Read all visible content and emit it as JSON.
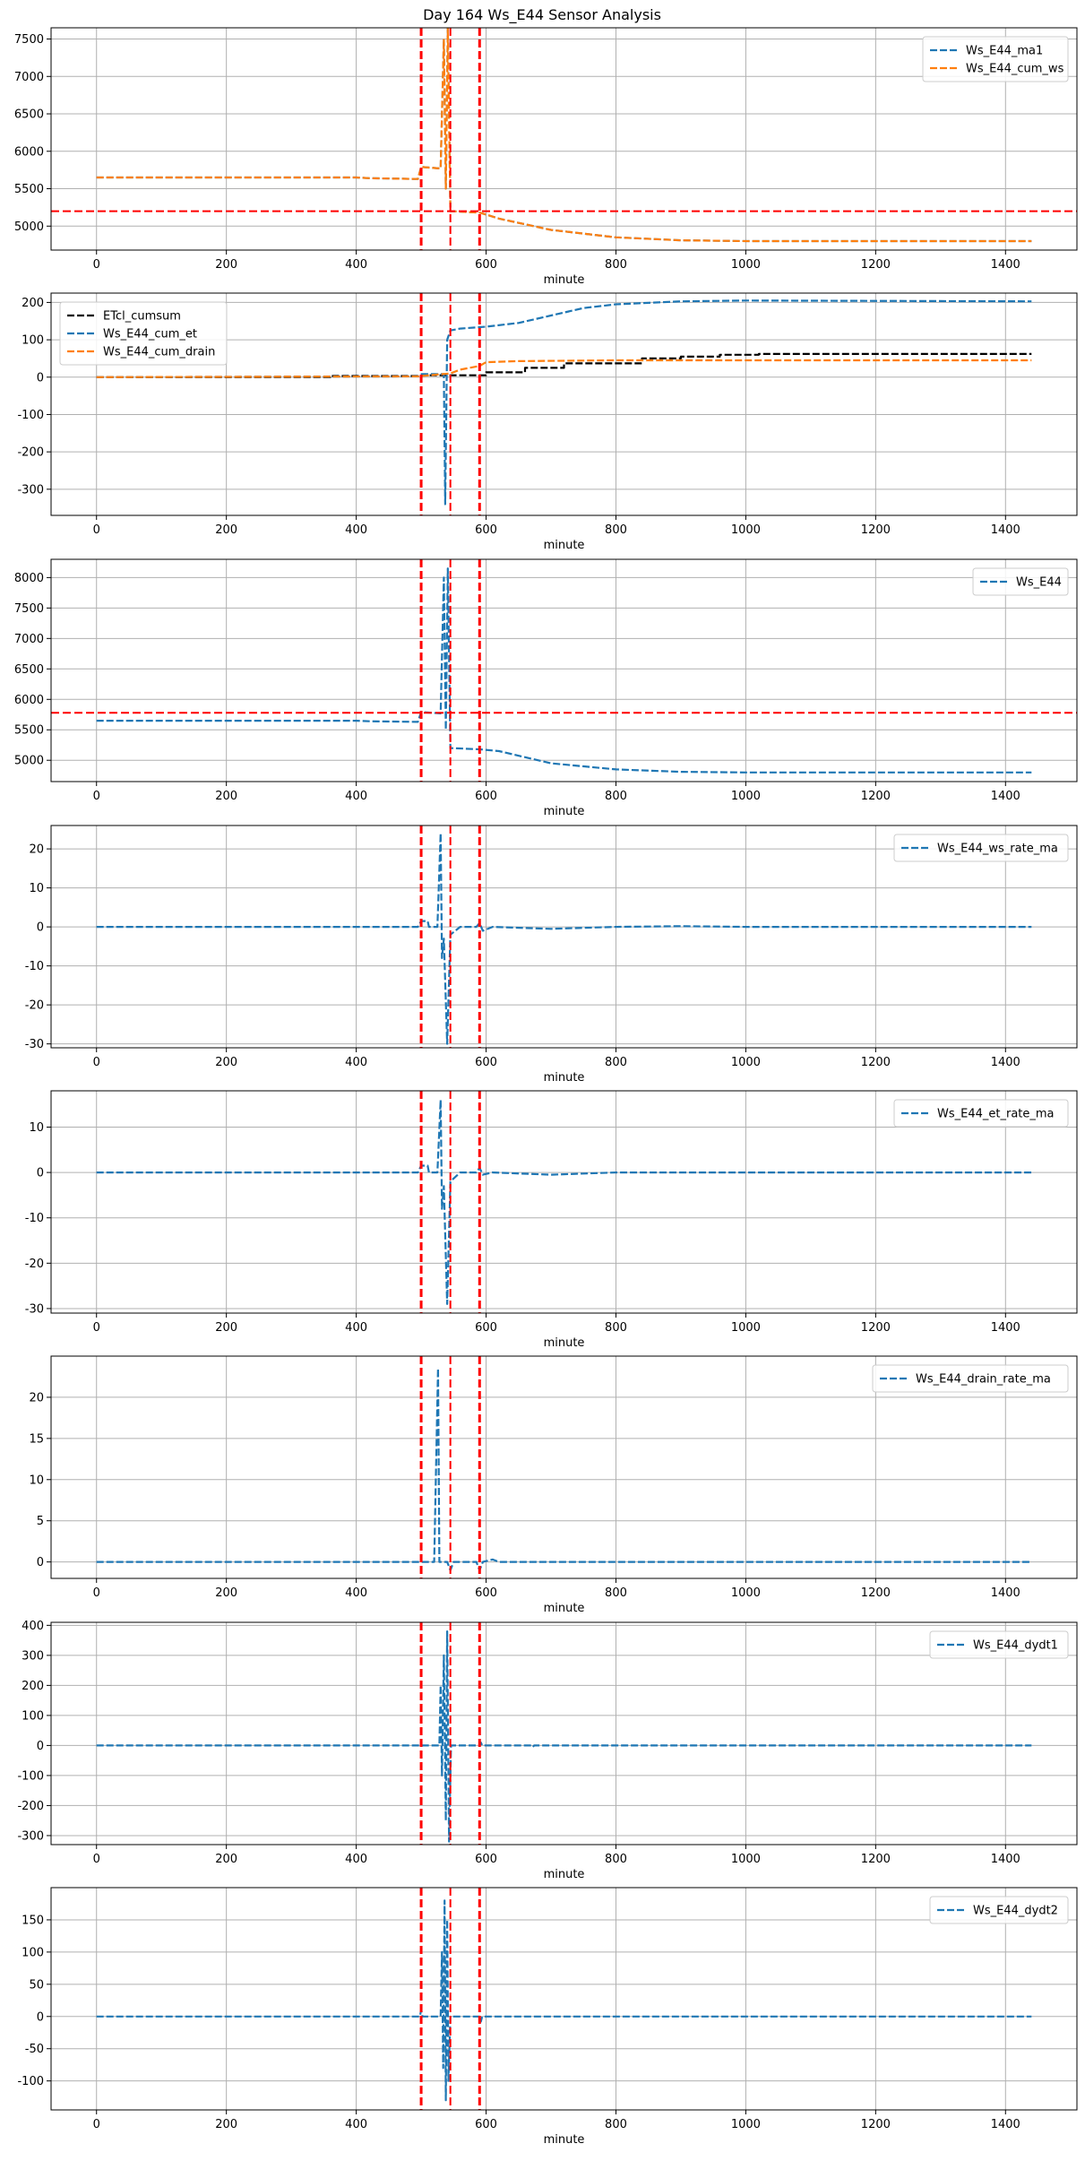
{
  "figure": {
    "title": "Day 164 Ws_E44 Sensor Analysis"
  },
  "colors": {
    "blue": "#1f77b4",
    "orange": "#ff7f0e",
    "black": "#000000",
    "red": "#ff0000",
    "grid": "#b0b0b0"
  },
  "chart_data": [
    {
      "type": "line",
      "xlabel": "minute",
      "legend_loc": "upper right",
      "xlim": [
        -70,
        1510
      ],
      "ylim": [
        4680,
        7650
      ],
      "xticks": [
        0,
        200,
        400,
        600,
        800,
        1000,
        1200,
        1400
      ],
      "yticks": [
        5000,
        5500,
        6000,
        6500,
        7000,
        7500
      ],
      "vlines": [
        500,
        545,
        590
      ],
      "hlines": [
        5200
      ],
      "series": [
        {
          "name": "Ws_E44_ma1",
          "color": "#1f77b4",
          "style": "dashed",
          "points": [
            [
              0,
              5650
            ],
            [
              400,
              5650
            ],
            [
              420,
              5640
            ],
            [
              495,
              5630
            ],
            [
              500,
              5790
            ],
            [
              530,
              5770
            ],
            [
              535,
              7500
            ],
            [
              538,
              5500
            ],
            [
              541,
              7650
            ],
            [
              545,
              5200
            ],
            [
              590,
              5180
            ],
            [
              620,
              5100
            ],
            [
              700,
              4950
            ],
            [
              800,
              4850
            ],
            [
              900,
              4810
            ],
            [
              1000,
              4800
            ],
            [
              1440,
              4800
            ]
          ]
        },
        {
          "name": "Ws_E44_cum_ws",
          "color": "#ff7f0e",
          "style": "dashed",
          "points": [
            [
              0,
              5650
            ],
            [
              400,
              5650
            ],
            [
              420,
              5640
            ],
            [
              495,
              5630
            ],
            [
              500,
              5790
            ],
            [
              530,
              5770
            ],
            [
              535,
              7500
            ],
            [
              538,
              5500
            ],
            [
              541,
              7650
            ],
            [
              545,
              5200
            ],
            [
              590,
              5180
            ],
            [
              620,
              5100
            ],
            [
              700,
              4950
            ],
            [
              800,
              4850
            ],
            [
              900,
              4810
            ],
            [
              1000,
              4800
            ],
            [
              1440,
              4800
            ]
          ]
        }
      ]
    },
    {
      "type": "line",
      "xlabel": "minute",
      "legend_loc": "upper left",
      "xlim": [
        -70,
        1510
      ],
      "ylim": [
        -370,
        225
      ],
      "xticks": [
        0,
        200,
        400,
        600,
        800,
        1000,
        1200,
        1400
      ],
      "yticks": [
        -300,
        -200,
        -100,
        0,
        100,
        200
      ],
      "vlines": [
        500,
        545,
        590
      ],
      "hlines": [],
      "series": [
        {
          "name": "ETcl_cumsum",
          "color": "#000000",
          "style": "dashed",
          "points": [
            [
              0,
              0
            ],
            [
              360,
              0
            ],
            [
              360,
              3
            ],
            [
              500,
              3
            ],
            [
              500,
              5
            ],
            [
              600,
              5
            ],
            [
              600,
              13
            ],
            [
              660,
              13
            ],
            [
              660,
              25
            ],
            [
              720,
              25
            ],
            [
              720,
              37
            ],
            [
              780,
              37
            ],
            [
              780,
              37
            ],
            [
              840,
              37
            ],
            [
              840,
              50
            ],
            [
              900,
              50
            ],
            [
              900,
              55
            ],
            [
              960,
              55
            ],
            [
              960,
              60
            ],
            [
              1020,
              60
            ],
            [
              1020,
              62
            ],
            [
              1440,
              62
            ]
          ]
        },
        {
          "name": "Ws_E44_cum_et",
          "color": "#1f77b4",
          "style": "dashed",
          "points": [
            [
              0,
              0
            ],
            [
              495,
              2
            ],
            [
              500,
              8
            ],
            [
              535,
              8
            ],
            [
              537,
              -340
            ],
            [
              540,
              100
            ],
            [
              545,
              125
            ],
            [
              560,
              130
            ],
            [
              600,
              135
            ],
            [
              650,
              145
            ],
            [
              700,
              165
            ],
            [
              750,
              185
            ],
            [
              800,
              195
            ],
            [
              900,
              203
            ],
            [
              1000,
              205
            ],
            [
              1440,
              203
            ]
          ]
        },
        {
          "name": "Ws_E44_cum_drain",
          "color": "#ff7f0e",
          "style": "dashed",
          "points": [
            [
              0,
              0
            ],
            [
              495,
              2
            ],
            [
              500,
              3
            ],
            [
              545,
              10
            ],
            [
              560,
              20
            ],
            [
              590,
              30
            ],
            [
              600,
              40
            ],
            [
              650,
              43
            ],
            [
              800,
              45
            ],
            [
              1440,
              45
            ]
          ]
        }
      ]
    },
    {
      "type": "line",
      "xlabel": "minute",
      "legend_loc": "upper right",
      "xlim": [
        -70,
        1510
      ],
      "ylim": [
        4650,
        8300
      ],
      "xticks": [
        0,
        200,
        400,
        600,
        800,
        1000,
        1200,
        1400
      ],
      "yticks": [
        5000,
        5500,
        6000,
        6500,
        7000,
        7500,
        8000
      ],
      "vlines": [
        500,
        545,
        590
      ],
      "hlines": [
        5780
      ],
      "series": [
        {
          "name": "Ws_E44",
          "color": "#1f77b4",
          "style": "dashed",
          "points": [
            [
              0,
              5650
            ],
            [
              400,
              5650
            ],
            [
              420,
              5640
            ],
            [
              495,
              5630
            ],
            [
              500,
              5790
            ],
            [
              530,
              5770
            ],
            [
              535,
              8000
            ],
            [
              538,
              5500
            ],
            [
              541,
              8150
            ],
            [
              545,
              5200
            ],
            [
              590,
              5180
            ],
            [
              620,
              5150
            ],
            [
              700,
              4950
            ],
            [
              800,
              4850
            ],
            [
              900,
              4810
            ],
            [
              1000,
              4800
            ],
            [
              1440,
              4800
            ]
          ]
        }
      ]
    },
    {
      "type": "line",
      "xlabel": "minute",
      "legend_loc": "upper right",
      "xlim": [
        -70,
        1510
      ],
      "ylim": [
        -31,
        26
      ],
      "xticks": [
        0,
        200,
        400,
        600,
        800,
        1000,
        1200,
        1400
      ],
      "yticks": [
        -30,
        -20,
        -10,
        0,
        10,
        20
      ],
      "vlines": [
        500,
        545,
        590
      ],
      "hlines": [],
      "series": [
        {
          "name": "Ws_E44_ws_rate_ma",
          "color": "#1f77b4",
          "style": "dashed",
          "points": [
            [
              0,
              0
            ],
            [
              495,
              0
            ],
            [
              500,
              1.5
            ],
            [
              510,
              1.5
            ],
            [
              512,
              0
            ],
            [
              525,
              0
            ],
            [
              530,
              24
            ],
            [
              532,
              -8
            ],
            [
              535,
              -3
            ],
            [
              540,
              -30
            ],
            [
              545,
              -2
            ],
            [
              560,
              0
            ],
            [
              585,
              0
            ],
            [
              590,
              1
            ],
            [
              595,
              -1
            ],
            [
              610,
              0
            ],
            [
              700,
              -0.5
            ],
            [
              800,
              0
            ],
            [
              900,
              0.2
            ],
            [
              1000,
              0
            ],
            [
              1440,
              0
            ]
          ]
        }
      ]
    },
    {
      "type": "line",
      "xlabel": "minute",
      "legend_loc": "upper right",
      "xlim": [
        -70,
        1510
      ],
      "ylim": [
        -31,
        18
      ],
      "xticks": [
        0,
        200,
        400,
        600,
        800,
        1000,
        1200,
        1400
      ],
      "yticks": [
        -30,
        -20,
        -10,
        0,
        10
      ],
      "vlines": [
        500,
        545,
        590
      ],
      "hlines": [],
      "series": [
        {
          "name": "Ws_E44_et_rate_ma",
          "color": "#1f77b4",
          "style": "dashed",
          "points": [
            [
              0,
              0
            ],
            [
              495,
              0
            ],
            [
              500,
              1.5
            ],
            [
              510,
              1.5
            ],
            [
              512,
              0
            ],
            [
              525,
              0
            ],
            [
              530,
              16
            ],
            [
              532,
              -8
            ],
            [
              535,
              -3
            ],
            [
              540,
              -29
            ],
            [
              545,
              -2
            ],
            [
              560,
              0
            ],
            [
              585,
              0
            ],
            [
              590,
              1
            ],
            [
              595,
              -0.5
            ],
            [
              610,
              0
            ],
            [
              700,
              -0.5
            ],
            [
              800,
              0
            ],
            [
              1440,
              0
            ]
          ]
        }
      ]
    },
    {
      "type": "line",
      "xlabel": "minute",
      "legend_loc": "upper right",
      "xlim": [
        -70,
        1510
      ],
      "ylim": [
        -2,
        25
      ],
      "xticks": [
        0,
        200,
        400,
        600,
        800,
        1000,
        1200,
        1400
      ],
      "yticks": [
        0,
        5,
        10,
        15,
        20
      ],
      "vlines": [
        500,
        545,
        590
      ],
      "hlines": [],
      "series": [
        {
          "name": "Ws_E44_drain_rate_ma",
          "color": "#1f77b4",
          "style": "dashed",
          "points": [
            [
              0,
              0
            ],
            [
              520,
              0
            ],
            [
              526,
              23.5
            ],
            [
              528,
              0
            ],
            [
              540,
              0
            ],
            [
              545,
              -1
            ],
            [
              550,
              0
            ],
            [
              585,
              0
            ],
            [
              590,
              -1
            ],
            [
              595,
              0
            ],
            [
              610,
              0.3
            ],
            [
              620,
              0
            ],
            [
              1440,
              0
            ]
          ]
        }
      ]
    },
    {
      "type": "line",
      "xlabel": "minute",
      "legend_loc": "upper right",
      "xlim": [
        -70,
        1510
      ],
      "ylim": [
        -330,
        410
      ],
      "xticks": [
        0,
        200,
        400,
        600,
        800,
        1000,
        1200,
        1400
      ],
      "yticks": [
        -300,
        -200,
        -100,
        0,
        100,
        200,
        300,
        400
      ],
      "vlines": [
        500,
        545,
        590
      ],
      "hlines": [],
      "series": [
        {
          "name": "Ws_E44_dydt1",
          "color": "#1f77b4",
          "style": "dashed",
          "points": [
            [
              0,
              0
            ],
            [
              528,
              0
            ],
            [
              530,
              200
            ],
            [
              532,
              -100
            ],
            [
              535,
              300
            ],
            [
              538,
              -250
            ],
            [
              540,
              380
            ],
            [
              543,
              -320
            ],
            [
              546,
              0
            ],
            [
              590,
              0
            ],
            [
              592,
              10
            ],
            [
              594,
              0
            ],
            [
              670,
              0
            ],
            [
              672,
              -5
            ],
            [
              674,
              0
            ],
            [
              1440,
              0
            ]
          ]
        }
      ]
    },
    {
      "type": "line",
      "xlabel": "minute",
      "legend_loc": "upper right",
      "xlim": [
        -70,
        1510
      ],
      "ylim": [
        -145,
        200
      ],
      "xticks": [
        0,
        200,
        400,
        600,
        800,
        1000,
        1200,
        1400
      ],
      "yticks": [
        -100,
        -50,
        0,
        50,
        100,
        150
      ],
      "vlines": [
        500,
        545,
        590
      ],
      "hlines": [],
      "series": [
        {
          "name": "Ws_E44_dydt2",
          "color": "#1f77b4",
          "style": "dashed",
          "points": [
            [
              0,
              0
            ],
            [
              498,
              0
            ],
            [
              500,
              10
            ],
            [
              502,
              0
            ],
            [
              530,
              0
            ],
            [
              532,
              100
            ],
            [
              534,
              -80
            ],
            [
              536,
              180
            ],
            [
              538,
              -130
            ],
            [
              540,
              150
            ],
            [
              542,
              -100
            ],
            [
              545,
              0
            ],
            [
              590,
              0
            ],
            [
              592,
              -8
            ],
            [
              594,
              0
            ],
            [
              1440,
              0
            ]
          ]
        }
      ]
    }
  ]
}
